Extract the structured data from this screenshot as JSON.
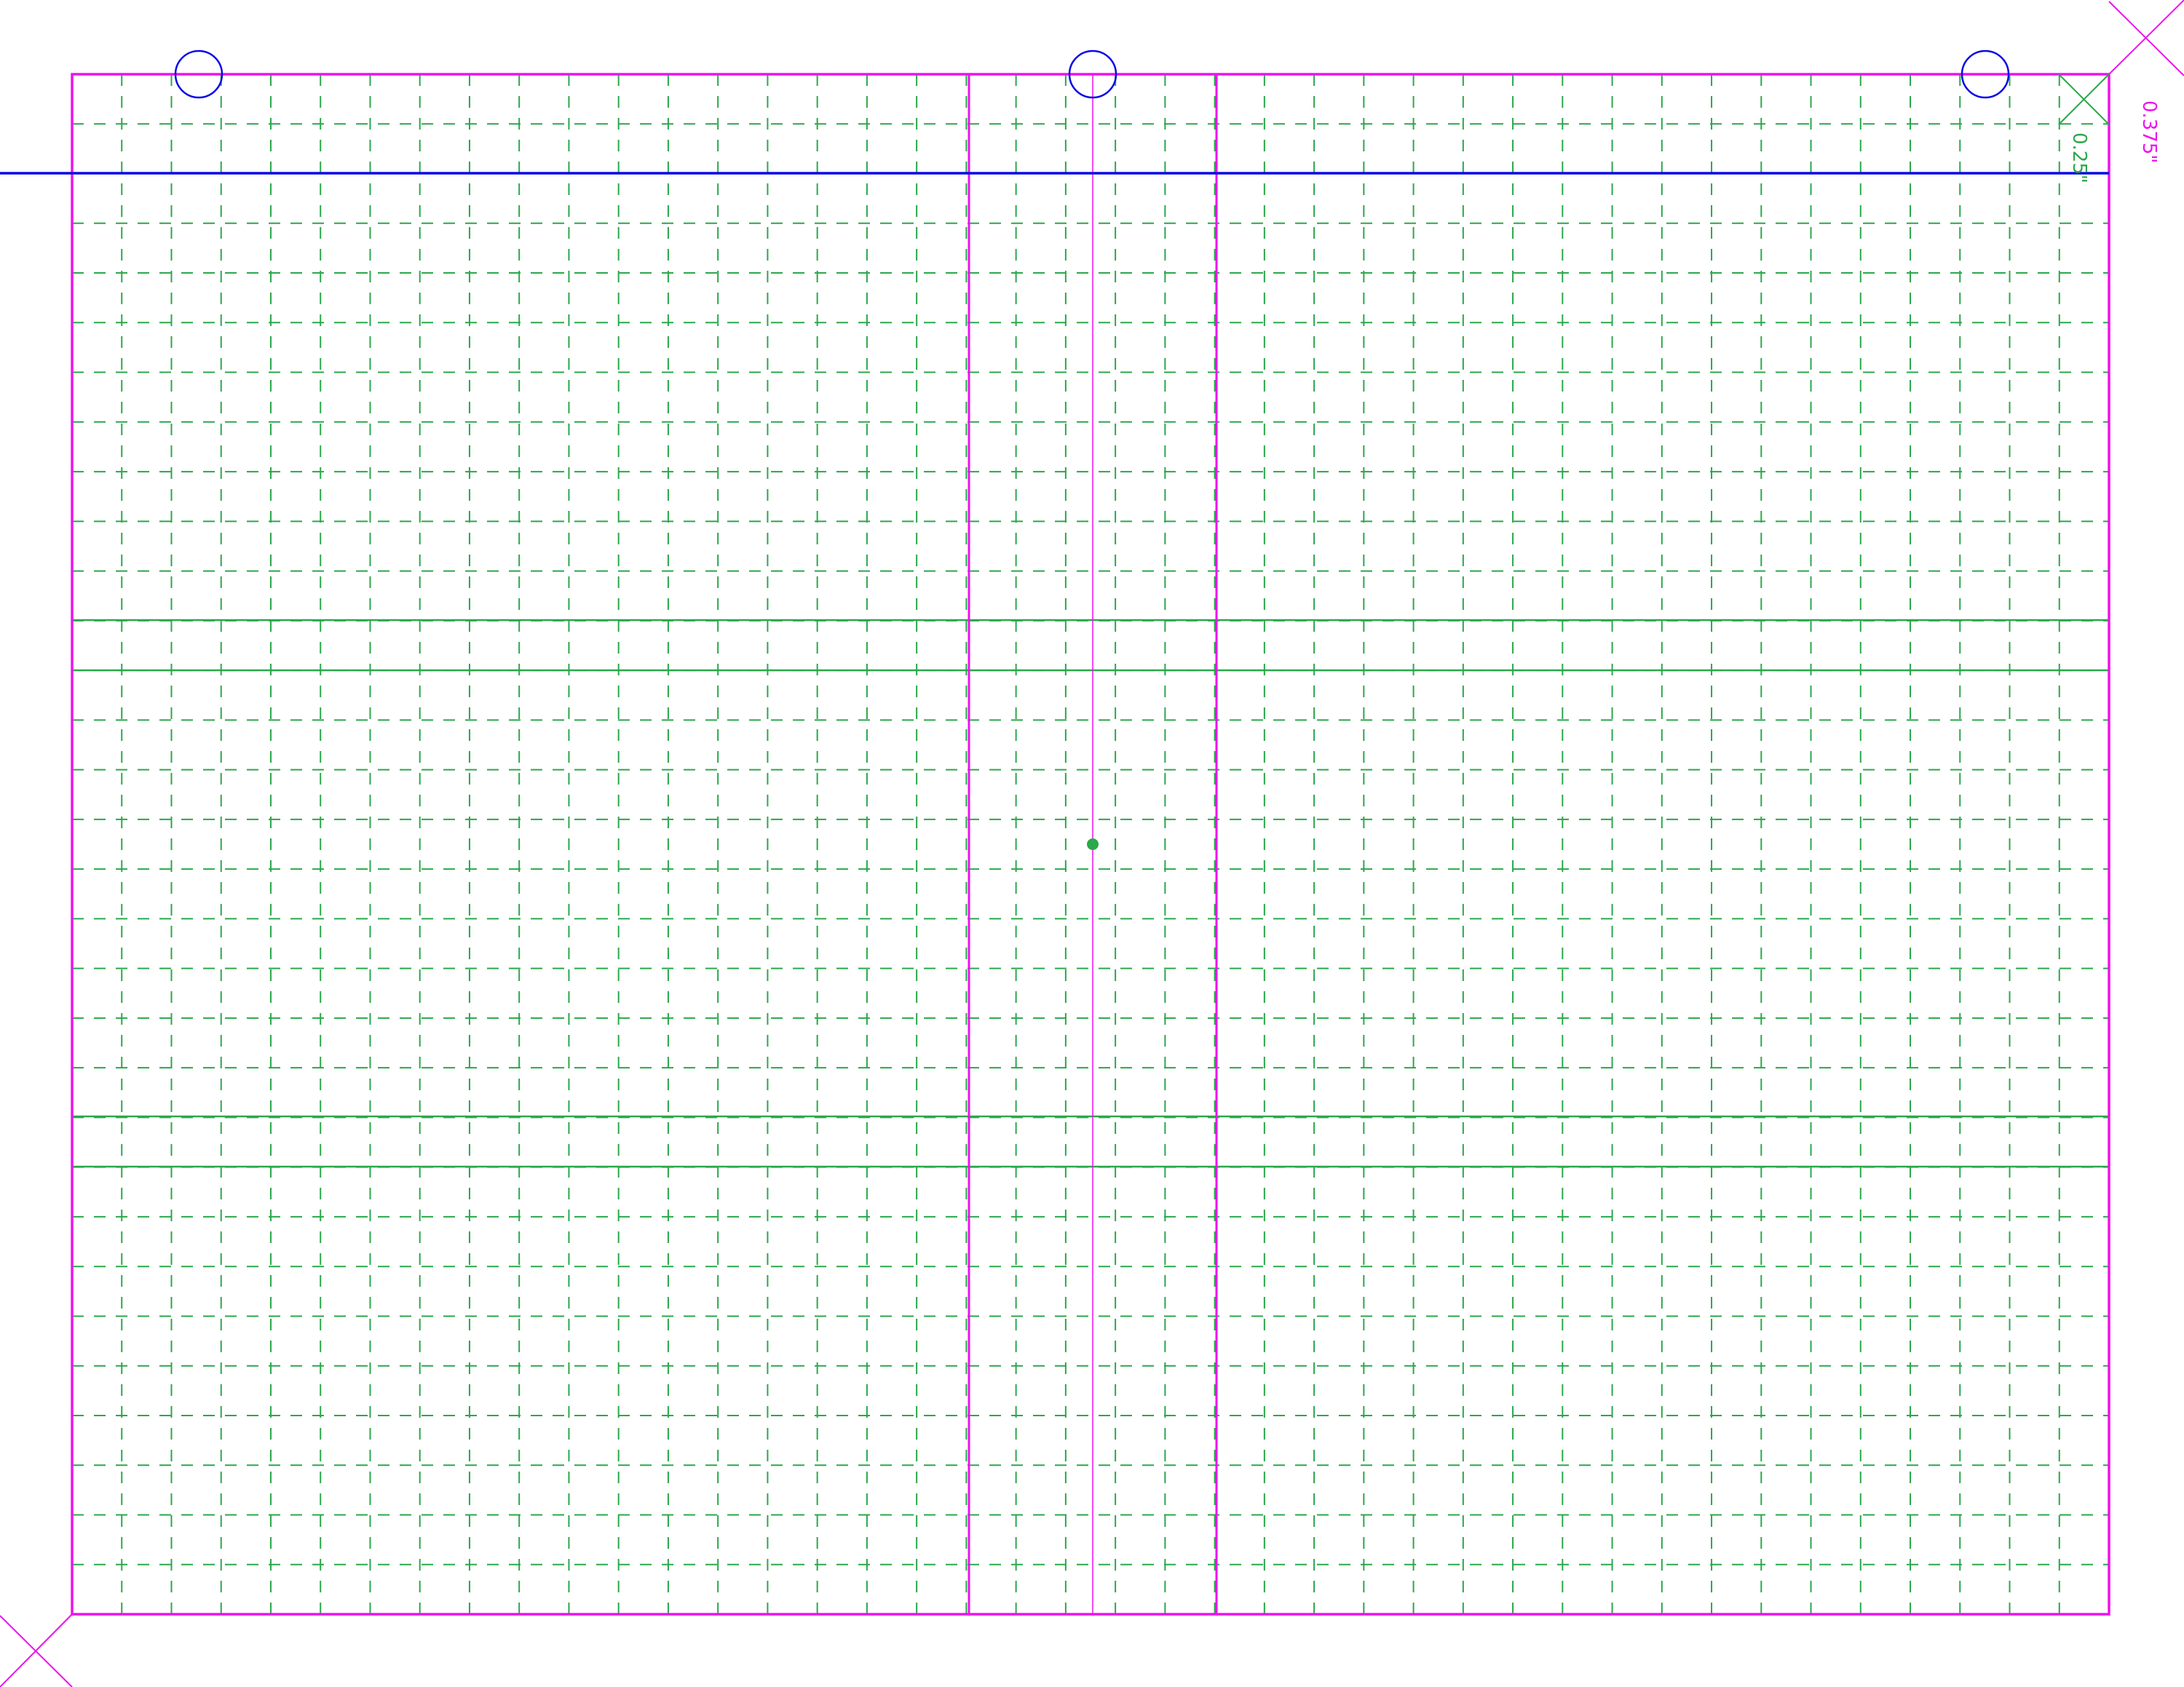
{
  "labels": {
    "outer_offset": "0.375\"",
    "inner_offset": "0.25\""
  },
  "colors": {
    "border": "#ee11ee",
    "guide_blue": "#0a0ae6",
    "grid_green": "#2aa84a"
  }
}
